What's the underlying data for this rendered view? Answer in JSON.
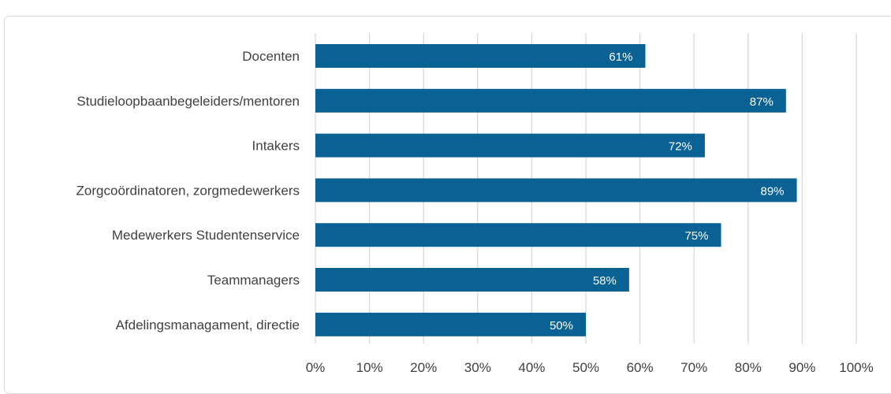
{
  "chart_data": {
    "type": "bar",
    "orientation": "horizontal",
    "categories": [
      "Docenten",
      "Studieloopbaanbegeleiders/mentoren",
      "Intakers",
      "Zorgcoördinatoren, zorgmedewerkers",
      "Medewerkers Studentenservice",
      "Teammanagers",
      "Afdelingsmanagament, directie"
    ],
    "values": [
      61,
      87,
      72,
      89,
      75,
      58,
      50
    ],
    "data_labels": [
      "61%",
      "87%",
      "72%",
      "89%",
      "75%",
      "58%",
      "50%"
    ],
    "x_ticks": [
      "0%",
      "10%",
      "20%",
      "30%",
      "40%",
      "50%",
      "60%",
      "70%",
      "80%",
      "90%",
      "100%"
    ],
    "xlim": [
      0,
      100
    ],
    "grid": true,
    "colors": {
      "bar": "#0a6194",
      "grid": "#d9d9d9",
      "text": "#404040",
      "data_label": "#ffffff"
    }
  }
}
